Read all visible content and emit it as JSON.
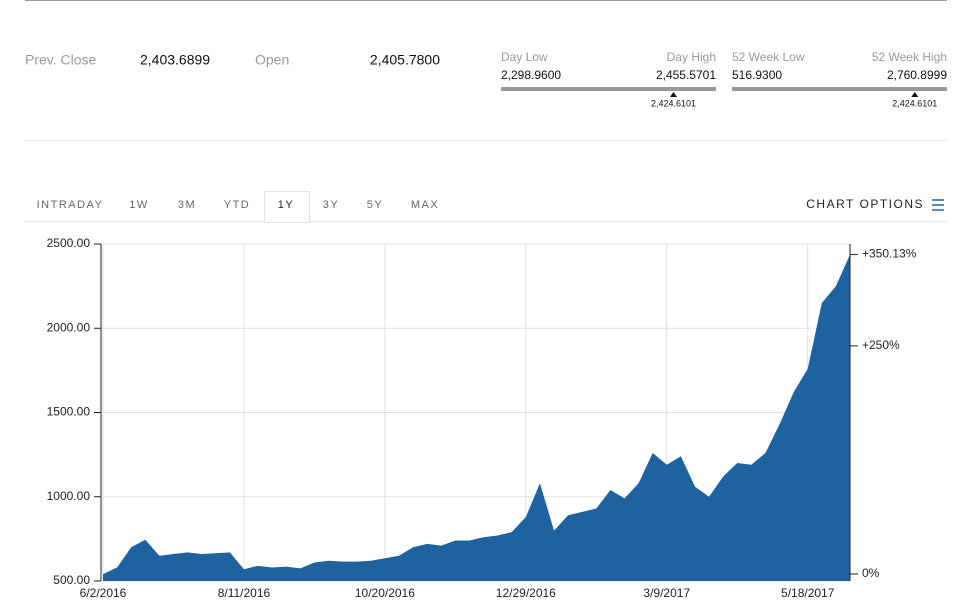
{
  "quote": {
    "prev_close_label": "Prev. Close",
    "prev_close": "2,403.6899",
    "open_label": "Open",
    "open": "2,405.7800",
    "day_range": {
      "low_label": "Day Low",
      "high_label": "Day High",
      "low": {
        "value": 2298.96,
        "label": "2,298.9600"
      },
      "high": {
        "value": 2455.5701,
        "label": "2,455.5701"
      },
      "current": {
        "value": 2424.6101,
        "label": "2,424.6101"
      }
    },
    "week52_range": {
      "low_label": "52 Week Low",
      "high_label": "52 Week High",
      "low": {
        "value": 516.93,
        "label": "516.9300"
      },
      "high": {
        "value": 2760.8999,
        "label": "2,760.8999"
      },
      "current": {
        "value": 2424.6101,
        "label": "2,424.6101"
      }
    }
  },
  "tabs": [
    "INTRADAY",
    "1W",
    "3M",
    "YTD",
    "1Y",
    "3Y",
    "5Y",
    "MAX"
  ],
  "active_tab": 4,
  "chart_options": "CHART OPTIONS",
  "chart_data": {
    "type": "area",
    "color": "#1f62a0",
    "grid": true,
    "categories": [
      "6/2/2016",
      null,
      null,
      null,
      null,
      null,
      null,
      null,
      null,
      null,
      "8/11/2016",
      null,
      null,
      null,
      null,
      null,
      null,
      null,
      null,
      null,
      "10/20/2016",
      null,
      null,
      null,
      null,
      null,
      null,
      null,
      null,
      null,
      "12/29/2016",
      null,
      null,
      null,
      null,
      null,
      null,
      null,
      null,
      null,
      "3/9/2017",
      null,
      null,
      null,
      null,
      null,
      null,
      null,
      null,
      null,
      "5/18/2017",
      null,
      null,
      null
    ],
    "values": [
      541,
      580,
      700,
      745,
      650,
      660,
      670,
      660,
      665,
      670,
      570,
      590,
      580,
      585,
      575,
      610,
      620,
      615,
      615,
      620,
      635,
      650,
      700,
      720,
      710,
      740,
      740,
      760,
      770,
      790,
      880,
      1080,
      800,
      890,
      910,
      930,
      1040,
      990,
      1080,
      1260,
      1190,
      1240,
      1060,
      1000,
      1120,
      1200,
      1190,
      1260,
      1430,
      1620,
      1760,
      2150,
      2250,
      2437.5
    ],
    "ylim": [
      500,
      2500
    ],
    "yticks": [
      {
        "value": 500,
        "label": "500.00"
      },
      {
        "value": 1000,
        "label": "1000.00"
      },
      {
        "value": 1500,
        "label": "1500.00"
      },
      {
        "value": 2000,
        "label": "2000.00"
      },
      {
        "value": 2500,
        "label": "2500.00"
      }
    ],
    "y2lim": [
      -7.7,
      361.7
    ],
    "y2ticks": [
      {
        "value": 0,
        "label": "0%"
      },
      {
        "value": 250,
        "label": "+250%"
      }
    ],
    "last_change": {
      "value": 350.13,
      "label": "+350.13%",
      "color": "#3aaa35"
    }
  }
}
